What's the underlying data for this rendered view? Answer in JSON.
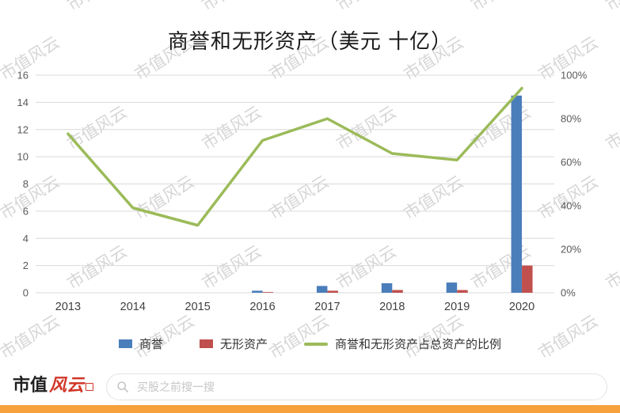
{
  "title": "商誉和无形资产（美元 十亿）",
  "watermark_text": "市值风云",
  "chart_data": {
    "type": "combo",
    "title": "商誉和无形资产（美元 十亿）",
    "categories": [
      "2013",
      "2014",
      "2015",
      "2016",
      "2017",
      "2018",
      "2019",
      "2020"
    ],
    "series": [
      {
        "name": "商誉",
        "type": "bar",
        "axis": "left",
        "color": "#4a7ebb",
        "values": [
          0,
          0,
          0,
          0.15,
          0.5,
          0.7,
          0.75,
          14.5
        ]
      },
      {
        "name": "无形资产",
        "type": "bar",
        "axis": "left",
        "color": "#c0504d",
        "values": [
          0,
          0,
          0,
          0.05,
          0.15,
          0.2,
          0.2,
          2.0
        ]
      },
      {
        "name": "商誉和无形资产占总资产的比例",
        "type": "line",
        "axis": "right",
        "color": "#9bbb59",
        "values": [
          73,
          39,
          31,
          70,
          80,
          64,
          61,
          94
        ]
      }
    ],
    "left_axis": {
      "min": 0,
      "max": 16,
      "step": 2
    },
    "right_axis": {
      "min": 0,
      "max": 100,
      "step": 20,
      "suffix": "%"
    },
    "grid": true,
    "gridline_color": "#d9d9d9",
    "legend_position": "bottom"
  },
  "footer": {
    "logo_text_black": "市值",
    "logo_text_red": "风云",
    "search_placeholder": "买股之前搜一搜",
    "accent_bar_color": "#f7a13c"
  }
}
